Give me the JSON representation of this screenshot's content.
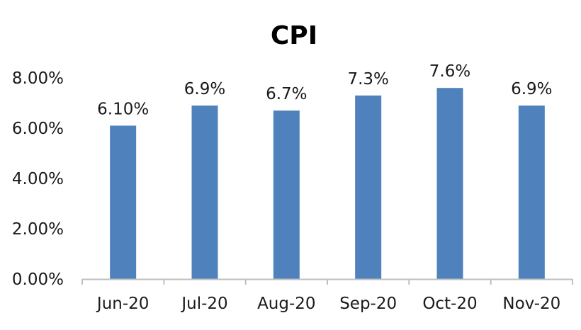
{
  "chart_data": {
    "type": "bar",
    "title": "CPI",
    "xlabel": "",
    "ylabel": "",
    "categories": [
      "Jun-20",
      "Jul-20",
      "Aug-20",
      "Sep-20",
      "Oct-20",
      "Nov-20"
    ],
    "values": [
      6.1,
      6.9,
      6.7,
      7.3,
      7.6,
      6.9
    ],
    "data_labels": [
      "6.10%",
      "6.9%",
      "6.7%",
      "7.3%",
      "7.6%",
      "6.9%"
    ],
    "ylim": [
      0,
      8
    ],
    "yticks": [
      0,
      2,
      4,
      6,
      8
    ],
    "ytick_labels": [
      "0.00%",
      "2.00%",
      "4.00%",
      "6.00%",
      "8.00%"
    ],
    "grid": false,
    "legend": "none",
    "bar_color": "#4f81bd",
    "axis_color": "#bfbfbf"
  }
}
